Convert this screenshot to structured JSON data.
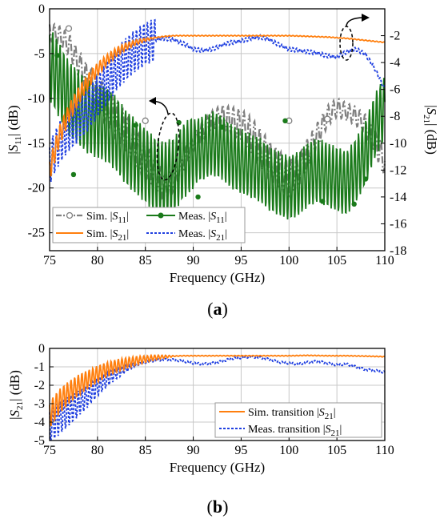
{
  "chart_data": [
    {
      "panel": "a",
      "type": "line",
      "panel_label": "(a)",
      "xlabel": "Frequency (GHz)",
      "ylabel_left": "|S11| (dB)",
      "ylabel_right": "|S21| (dB)",
      "xlim": [
        75,
        110
      ],
      "ylim_left": [
        -27,
        0
      ],
      "ylim_right": [
        -18,
        0
      ],
      "xticks": [
        "75",
        "80",
        "85",
        "90",
        "95",
        "100",
        "105",
        "110"
      ],
      "yticks_left": [
        "0",
        "-5",
        "-10",
        "-15",
        "-20",
        "-25"
      ],
      "yticks_right": [
        "-2",
        "-4",
        "-6",
        "-8",
        "-10",
        "-12",
        "-14",
        "-16",
        "-18"
      ],
      "grid": true,
      "legend_position": "bottom-left",
      "series": [
        {
          "name": "Sim. |S11|",
          "axis": "left",
          "color": "#7f7f7f",
          "style": "dash-dot with open circles",
          "x": [
            75,
            76,
            77,
            78,
            79,
            80,
            81,
            82,
            83,
            84,
            85,
            86,
            87,
            88,
            89,
            90,
            91,
            92,
            93,
            94,
            95,
            96,
            97,
            98,
            99,
            100,
            101,
            102,
            103,
            104,
            105,
            106,
            107,
            108,
            109,
            110
          ],
          "y": [
            -2.5,
            -3,
            -4,
            -6,
            -8,
            -9.5,
            -11,
            -12.5,
            -14,
            -15.5,
            -17,
            -18.5,
            -20,
            -19,
            -17,
            -15,
            -13.5,
            -12.5,
            -12,
            -12.5,
            -13,
            -14,
            -15.5,
            -17,
            -18,
            -19,
            -18,
            -16,
            -14,
            -12,
            -11,
            -11.5,
            -12,
            -13,
            -15,
            -17
          ]
        },
        {
          "name": "Meas. |S11|",
          "axis": "left",
          "color": "#1a7a1a",
          "style": "solid with filled dots",
          "x": [
            75,
            76,
            77,
            78,
            79,
            80,
            81,
            82,
            83,
            84,
            85,
            86,
            87,
            88,
            89,
            90,
            91,
            92,
            93,
            94,
            95,
            96,
            97,
            98,
            99,
            100,
            101,
            102,
            103,
            104,
            105,
            106,
            107,
            108,
            109,
            110
          ],
          "y": [
            -6,
            -8,
            -10,
            -11,
            -12,
            -12.5,
            -13,
            -14,
            -15.5,
            -16.5,
            -17.5,
            -18.5,
            -19,
            -18.5,
            -17,
            -16,
            -15.5,
            -15,
            -15.5,
            -16.5,
            -17,
            -17.5,
            -18,
            -19,
            -19.5,
            -20,
            -19.5,
            -18.5,
            -18,
            -18.5,
            -19,
            -19.5,
            -18,
            -16,
            -13,
            -11
          ]
        },
        {
          "name": "Sim. |S21|",
          "axis": "right",
          "color": "#ff7f0e",
          "style": "solid",
          "x": [
            75,
            76,
            77,
            78,
            79,
            80,
            81,
            82,
            83,
            84,
            85,
            86,
            87,
            88,
            89,
            90,
            92,
            94,
            96,
            98,
            100,
            102,
            104,
            106,
            108,
            110
          ],
          "y": [
            -12,
            -9.5,
            -7.8,
            -6.5,
            -5.4,
            -4.5,
            -3.8,
            -3.2,
            -2.8,
            -2.5,
            -2.3,
            -2.15,
            -2.05,
            -2,
            -2,
            -2,
            -2,
            -2,
            -2,
            -2,
            -2,
            -2.05,
            -2.1,
            -2.2,
            -2.35,
            -2.5
          ]
        },
        {
          "name": "Meas. |S21|",
          "axis": "right",
          "color": "#1f3fe0",
          "style": "dotted",
          "x": [
            75,
            76,
            77,
            78,
            79,
            80,
            81,
            82,
            83,
            84,
            85,
            86,
            87,
            88,
            89,
            90,
            91,
            92,
            93,
            94,
            95,
            96,
            97,
            98,
            99,
            100,
            101,
            102,
            103,
            104,
            105,
            106,
            107,
            108,
            109,
            110
          ],
          "y": [
            -11.5,
            -10,
            -9,
            -8.3,
            -7.5,
            -6.5,
            -5.5,
            -4.5,
            -3.7,
            -3.1,
            -2.6,
            -2.3,
            -2.2,
            -2.3,
            -2.6,
            -3,
            -3.1,
            -3,
            -2.7,
            -2.5,
            -2.4,
            -2.2,
            -2.1,
            -2.3,
            -2.7,
            -3,
            -3.1,
            -3.2,
            -3.3,
            -3.5,
            -3.6,
            -3.2,
            -3,
            -3.4,
            -4.5,
            -6
          ]
        }
      ]
    },
    {
      "panel": "b",
      "type": "line",
      "panel_label": "(b)",
      "xlabel": "Frequency (GHz)",
      "ylabel": "|S21| (dB)",
      "xlim": [
        75,
        110
      ],
      "ylim": [
        -5,
        0
      ],
      "xticks": [
        "75",
        "80",
        "85",
        "90",
        "95",
        "100",
        "105",
        "110"
      ],
      "yticks": [
        "0",
        "-1",
        "-2",
        "-3",
        "-4",
        "-5"
      ],
      "grid": true,
      "legend_position": "bottom-right",
      "series": [
        {
          "name": "Sim. transition |S21|",
          "color": "#ff7f0e",
          "style": "solid",
          "x": [
            75,
            76,
            77,
            78,
            79,
            80,
            81,
            82,
            83,
            84,
            85,
            86,
            87,
            88,
            89,
            90,
            92,
            94,
            96,
            98,
            100,
            102,
            104,
            106,
            108,
            110
          ],
          "y": [
            -3.6,
            -2.9,
            -2.4,
            -2,
            -1.7,
            -1.4,
            -1.15,
            -0.95,
            -0.8,
            -0.68,
            -0.58,
            -0.5,
            -0.45,
            -0.42,
            -0.4,
            -0.4,
            -0.4,
            -0.4,
            -0.4,
            -0.4,
            -0.4,
            -0.38,
            -0.4,
            -0.4,
            -0.42,
            -0.45
          ]
        },
        {
          "name": "Meas. transition |S21|",
          "color": "#1f3fe0",
          "style": "dotted",
          "x": [
            75,
            76,
            77,
            78,
            79,
            80,
            81,
            82,
            83,
            84,
            85,
            86,
            87,
            88,
            89,
            90,
            91,
            92,
            93,
            94,
            95,
            96,
            97,
            98,
            99,
            100,
            101,
            102,
            103,
            104,
            105,
            106,
            107,
            108,
            109,
            110
          ],
          "y": [
            -4.2,
            -3.8,
            -3.4,
            -3,
            -2.6,
            -2.1,
            -1.7,
            -1.35,
            -1.1,
            -0.9,
            -0.75,
            -0.65,
            -0.6,
            -0.62,
            -0.7,
            -0.8,
            -0.85,
            -0.8,
            -0.7,
            -0.55,
            -0.5,
            -0.45,
            -0.5,
            -0.6,
            -0.75,
            -0.8,
            -0.85,
            -0.75,
            -0.7,
            -0.8,
            -0.9,
            -0.85,
            -1,
            -1.15,
            -1.2,
            -1.3
          ]
        }
      ]
    }
  ]
}
